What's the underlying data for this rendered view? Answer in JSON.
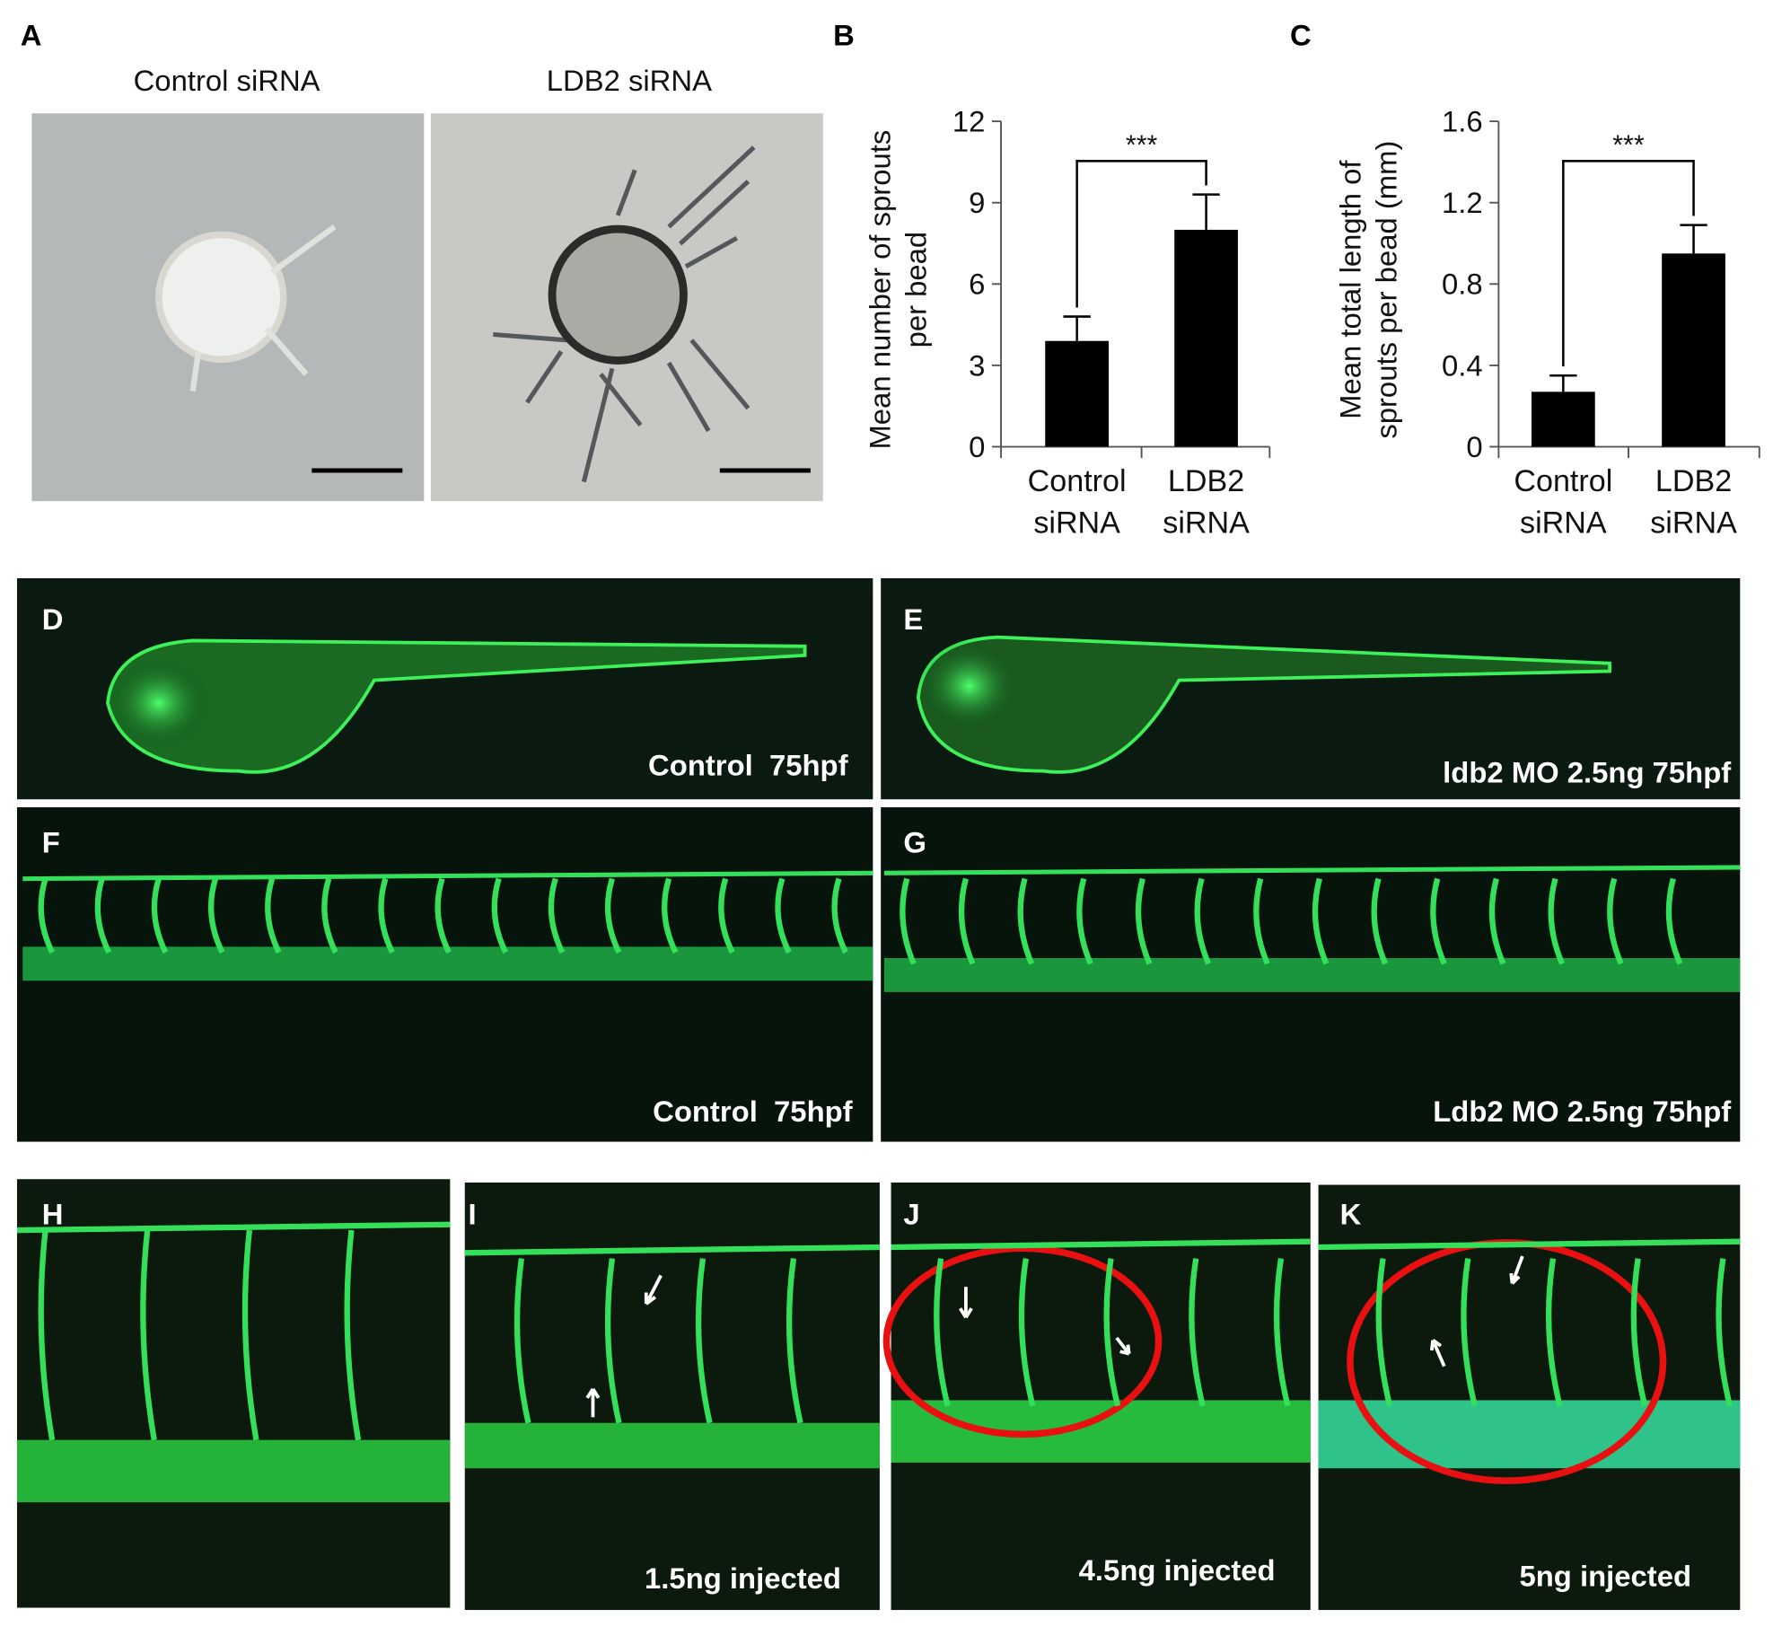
{
  "panel_labels": [
    "A",
    "B",
    "C",
    "D",
    "E",
    "F",
    "G",
    "H",
    "I",
    "J",
    "K"
  ],
  "image_titles": [
    "Control siRNA",
    "LDB2 siRNA"
  ],
  "captions": [
    "Control  75hpf",
    "ldb2 MO 2.5ng 75hpf",
    "Control  75hpf",
    "Ldb2 MO 2.5ng 75hpf",
    "1.5ng injected",
    "4.5ng injected",
    "5ng injected"
  ],
  "chart_data": [
    {
      "type": "bar",
      "ylabel": "Mean number of sprouts per bead",
      "categories": [
        "Control siRNA",
        "LDB2 siRNA"
      ],
      "values": [
        3.9,
        8.0
      ],
      "errors": [
        0.9,
        1.3
      ],
      "color": "#000000",
      "ylim": [
        0,
        12
      ],
      "yticks": [
        0,
        3,
        6,
        9,
        12
      ],
      "annotation": "***"
    },
    {
      "type": "bar",
      "ylabel": "Mean total length of sprouts per bead (mm)",
      "categories": [
        "Control siRNA",
        "LDB2 siRNA"
      ],
      "values": [
        0.27,
        0.95
      ],
      "errors": [
        0.08,
        0.14
      ],
      "color": "#000000",
      "ylim": [
        0,
        1.6
      ],
      "yticks": [
        0,
        0.4,
        0.8,
        1.2,
        1.6
      ],
      "annotation": "***"
    }
  ]
}
